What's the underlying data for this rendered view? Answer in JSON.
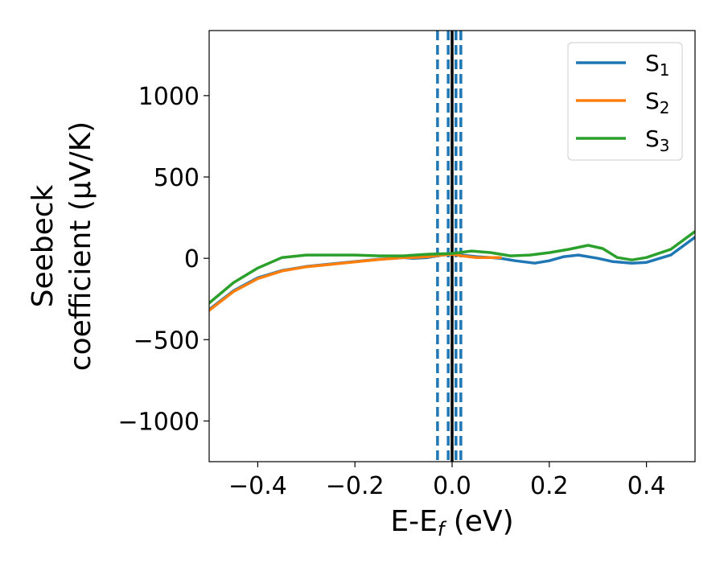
{
  "chart_data": {
    "type": "line",
    "title": "",
    "xlabel_main": "E-E",
    "xlabel_sub": "f",
    "xlabel_unit": " (eV)",
    "ylabel_line1": "Seebeck",
    "ylabel_line2": "coefficient  (μV/K)",
    "xlim": [
      -0.5,
      0.5
    ],
    "ylim": [
      -1250,
      1400
    ],
    "x_ticks": [
      -0.4,
      -0.2,
      0.0,
      0.2,
      0.4
    ],
    "x_tick_labels": [
      "−0.4",
      "−0.2",
      "0.0",
      "0.2",
      "0.4"
    ],
    "y_ticks": [
      -1000,
      -500,
      0,
      500,
      1000
    ],
    "y_tick_labels": [
      "−1000",
      "−500",
      "0",
      "500",
      "1000"
    ],
    "grid": false,
    "legend_position": "top-right",
    "vlines": [
      {
        "x": 0.0,
        "style": "solid",
        "color": "#000000"
      },
      {
        "x": -0.03,
        "style": "dashed",
        "color": "#1f77b4"
      },
      {
        "x": -0.008,
        "style": "dashed",
        "color": "#1f77b4"
      },
      {
        "x": 0.008,
        "style": "dashed",
        "color": "#1f77b4"
      },
      {
        "x": 0.018,
        "style": "dashed",
        "color": "#1f77b4"
      }
    ],
    "series": [
      {
        "name": "S",
        "sub": "1",
        "color": "#1f77b4",
        "x": [
          -0.5,
          -0.45,
          -0.4,
          -0.35,
          -0.3,
          -0.25,
          -0.2,
          -0.15,
          -0.12,
          -0.1,
          -0.08,
          -0.05,
          -0.02,
          0.0,
          0.02,
          0.05,
          0.08,
          0.1,
          0.13,
          0.17,
          0.2,
          0.23,
          0.26,
          0.3,
          0.33,
          0.37,
          0.4,
          0.45,
          0.5
        ],
        "y": [
          -315,
          -200,
          -120,
          -75,
          -50,
          -35,
          -20,
          -5,
          0,
          5,
          0,
          5,
          20,
          25,
          20,
          10,
          5,
          0,
          -15,
          -30,
          -15,
          10,
          20,
          0,
          -20,
          -30,
          -25,
          20,
          130
        ]
      },
      {
        "name": "S",
        "sub": "2",
        "color": "#ff7f0e",
        "x": [
          -0.5,
          -0.45,
          -0.4,
          -0.35,
          -0.3,
          -0.25,
          -0.2,
          -0.15,
          -0.12,
          -0.1,
          -0.08,
          -0.05,
          -0.02,
          0.0,
          0.02,
          0.05,
          0.08,
          0.1
        ],
        "y": [
          -320,
          -205,
          -125,
          -78,
          -52,
          -37,
          -22,
          -7,
          0,
          5,
          5,
          10,
          20,
          25,
          15,
          5,
          5,
          5
        ]
      },
      {
        "name": "S",
        "sub": "3",
        "color": "#2ca02c",
        "x": [
          -0.5,
          -0.45,
          -0.4,
          -0.35,
          -0.3,
          -0.25,
          -0.2,
          -0.15,
          -0.1,
          -0.05,
          0.0,
          0.04,
          0.08,
          0.12,
          0.16,
          0.2,
          0.24,
          0.28,
          0.31,
          0.34,
          0.37,
          0.4,
          0.45,
          0.5
        ],
        "y": [
          -275,
          -150,
          -60,
          5,
          20,
          20,
          20,
          15,
          15,
          25,
          30,
          45,
          35,
          15,
          20,
          35,
          55,
          80,
          60,
          5,
          -10,
          5,
          55,
          165
        ]
      }
    ]
  }
}
